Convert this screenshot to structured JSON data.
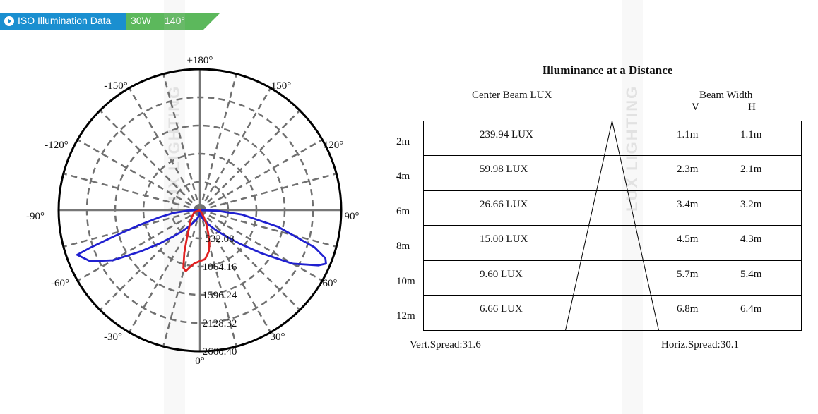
{
  "banner": {
    "title": "ISO Illumination  Data",
    "wattage": "30W",
    "angle": "140°",
    "bg_color": "#1a8fd0",
    "accent_color": "#5cb85c",
    "icon": "play-circle-icon"
  },
  "watermark": {
    "text": "LUX LIGHTING"
  },
  "chart_data": {
    "type": "polar",
    "angle_labels": [
      "±180°",
      "-150°",
      "150°",
      "-120°",
      "120°",
      "-90°",
      "90°",
      "-60°",
      "60°",
      "-30°",
      "30°",
      "0°"
    ],
    "radial_tick_labels": [
      "532.08",
      "1064.16",
      "1596.24",
      "2128.32",
      "2660.40"
    ],
    "radial_max": 2660.4,
    "grid": true,
    "series": [
      {
        "color": "#2020d0",
        "points": [
          [
            -70,
            2460
          ],
          [
            -65,
            2280
          ],
          [
            -60,
            1890
          ],
          [
            -55,
            1350
          ],
          [
            -50,
            960
          ],
          [
            -45,
            690
          ],
          [
            -40,
            520
          ],
          [
            -35,
            390
          ],
          [
            -30,
            300
          ],
          [
            -20,
            190
          ],
          [
            -10,
            110
          ],
          [
            -4,
            60
          ],
          [
            0,
            0
          ],
          [
            4,
            60
          ],
          [
            10,
            110
          ],
          [
            20,
            190
          ],
          [
            30,
            300
          ],
          [
            35,
            390
          ],
          [
            40,
            520
          ],
          [
            45,
            700
          ],
          [
            50,
            990
          ],
          [
            55,
            1420
          ],
          [
            60,
            2020
          ],
          [
            65,
            2460
          ],
          [
            67,
            2580
          ],
          [
            69,
            2530
          ],
          [
            72,
            2270
          ],
          [
            78,
            1500
          ],
          [
            84,
            800
          ],
          [
            88,
            330
          ],
          [
            90,
            0
          ],
          [
            -88,
            230
          ],
          [
            -84,
            500
          ],
          [
            -80,
            780
          ],
          [
            -76,
            1200
          ],
          [
            -73,
            1700
          ],
          [
            -71,
            2200
          ],
          [
            -70,
            2460
          ]
        ]
      },
      {
        "color": "#e02020",
        "points": [
          [
            0,
            0
          ],
          [
            30,
            150
          ],
          [
            25,
            280
          ],
          [
            20,
            450
          ],
          [
            16,
            650
          ],
          [
            12,
            800
          ],
          [
            6,
            930
          ],
          [
            0,
            960
          ],
          [
            -6,
            1010
          ],
          [
            -10,
            1090
          ],
          [
            -13,
            1180
          ],
          [
            -16,
            1130
          ],
          [
            -20,
            860
          ],
          [
            -24,
            620
          ],
          [
            -30,
            420
          ],
          [
            -40,
            280
          ],
          [
            -50,
            200
          ],
          [
            -70,
            110
          ],
          [
            -90,
            0
          ]
        ]
      }
    ]
  },
  "distance_table": {
    "title": "Illuminance at a Distance",
    "center_beam_header": "Center Beam LUX",
    "beam_width_header": "Beam Width",
    "v_header": "V",
    "h_header": "H",
    "rows": [
      {
        "distance": "2m",
        "lux": "239.94 LUX",
        "v": "1.1m",
        "h": "1.1m"
      },
      {
        "distance": "4m",
        "lux": "59.98 LUX",
        "v": "2.3m",
        "h": "2.1m"
      },
      {
        "distance": "6m",
        "lux": "26.66 LUX",
        "v": "3.4m",
        "h": "3.2m"
      },
      {
        "distance": "8m",
        "lux": "15.00 LUX",
        "v": "4.5m",
        "h": "4.3m"
      },
      {
        "distance": "10m",
        "lux": "9.60 LUX",
        "v": "5.7m",
        "h": "5.4m"
      },
      {
        "distance": "12m",
        "lux": "6.66 LUX",
        "v": "6.8m",
        "h": "6.4m"
      }
    ],
    "vert_spread": "Vert.Spread:31.6",
    "horiz_spread": "Horiz.Spread:30.1"
  }
}
